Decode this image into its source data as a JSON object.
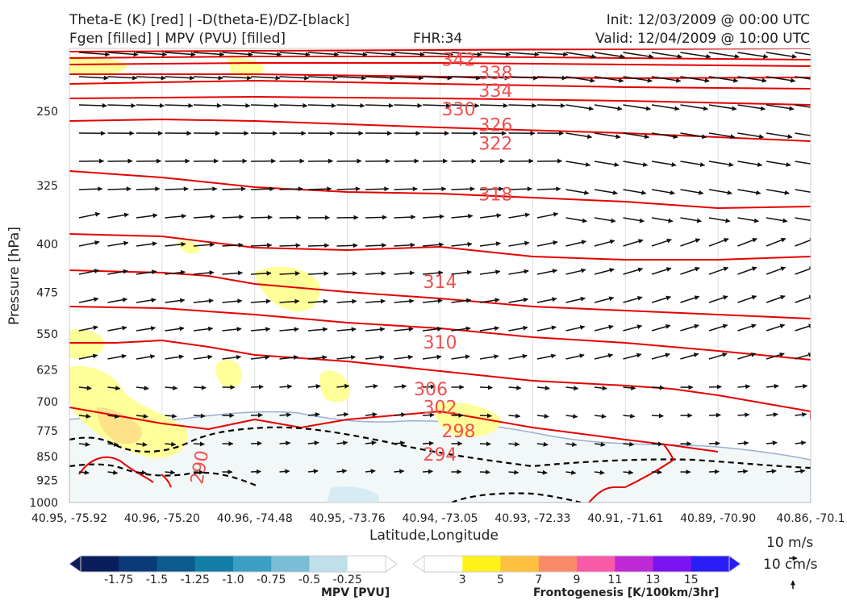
{
  "header": {
    "title_left_1": "Theta-E (K) [red] | -D(theta-E)/DZ-[black]",
    "title_left_2": "Fgen [filled] | MPV (PVU) [filled]",
    "fhr": "FHR:34",
    "init": "Init: 12/03/2009 @ 00:00 UTC",
    "valid": "Valid: 12/04/2009 @ 10:00 UTC"
  },
  "chart_data": {
    "type": "cross-section",
    "xlabel": "Latitude,Longitude",
    "ylabel": "Pressure [hPa]",
    "x_ticks": [
      "40.95, -75.92",
      "40.96, -75.20",
      "40.96, -74.48",
      "40.95, -73.76",
      "40.94, -73.05",
      "40.93, -72.33",
      "40.91, -71.61",
      "40.89, -70.90",
      "40.86, -70.1"
    ],
    "y_ticks": [
      250,
      325,
      400,
      475,
      550,
      625,
      700,
      775,
      850,
      925,
      1000
    ],
    "ylim": [
      1000,
      200
    ],
    "y_scale": "log-pressure",
    "theta_e_labels": [
      {
        "value": "342",
        "x": 4.2,
        "p": 208
      },
      {
        "value": "338",
        "x": 4.6,
        "p": 218
      },
      {
        "value": "334",
        "x": 4.6,
        "p": 232
      },
      {
        "value": "330",
        "x": 4.2,
        "p": 248
      },
      {
        "value": "326",
        "x": 4.6,
        "p": 262
      },
      {
        "value": "322",
        "x": 4.6,
        "p": 280
      },
      {
        "value": "318",
        "x": 4.6,
        "p": 335
      },
      {
        "value": "314",
        "x": 4.0,
        "p": 457
      },
      {
        "value": "310",
        "x": 4.0,
        "p": 566
      },
      {
        "value": "306",
        "x": 3.9,
        "p": 668
      },
      {
        "value": "302",
        "x": 4.0,
        "p": 713
      },
      {
        "value": "298",
        "x": 4.2,
        "p": 775
      },
      {
        "value": "294",
        "x": 4.0,
        "p": 842
      },
      {
        "value": "290",
        "x": 1.4,
        "p": 882
      }
    ],
    "colorbar_mpv": {
      "label": "MPV [PVU]",
      "ticks": [
        "-1.75",
        "-1.5",
        "-1.25",
        "-1.0",
        "-0.75",
        "-0.5",
        "-0.25"
      ],
      "colors": [
        "#0a1e5c",
        "#0b3a78",
        "#0d5a8e",
        "#137ea6",
        "#3a9fc2",
        "#79bdd6",
        "#bfe0ea",
        "#ffffff"
      ]
    },
    "colorbar_fgen": {
      "label": "Frontogenesis [K/100km/3hr]",
      "ticks": [
        "3",
        "5",
        "7",
        "9",
        "11",
        "13",
        "15"
      ],
      "colors": [
        "#ffffff",
        "#fff21a",
        "#fdc03f",
        "#fb8a6a",
        "#f85aa8",
        "#c02ad6",
        "#7a14f0",
        "#2a1ef8"
      ]
    },
    "wind_reference": {
      "horizontal": "10 m/s",
      "vertical": "10 cm/s"
    },
    "grid": true
  }
}
